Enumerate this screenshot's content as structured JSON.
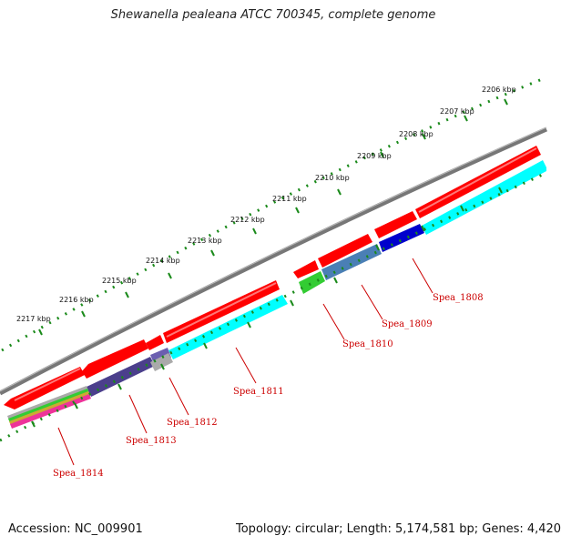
{
  "title": "Shewanella pealeana ATCC 700345, complete genome",
  "footer": {
    "accession": "Accession: NC_009901",
    "info": "Topology: circular; Length: 5,174,581 bp; Genes: 4,420"
  },
  "ruler": {
    "labels": [
      "2206 kbp",
      "2207 kbp",
      "2208 kbp",
      "2209 kbp",
      "2210 kbp",
      "2211 kbp",
      "2212 kbp",
      "2213 kbp",
      "2214 kbp",
      "2215 kbp",
      "2216 kbp",
      "2217 kbp"
    ]
  },
  "genes": [
    {
      "name": "Spea_1808"
    },
    {
      "name": "Spea_1809"
    },
    {
      "name": "Spea_1810"
    },
    {
      "name": "Spea_1811"
    },
    {
      "name": "Spea_1812"
    },
    {
      "name": "Spea_1813"
    },
    {
      "name": "Spea_1814"
    }
  ],
  "colors": {
    "gene_red": "#ff0000",
    "cyan": "#00ffff",
    "blue": "#0000cc",
    "steelblue": "#4a7fb5",
    "green": "#33cc33",
    "indigo": "#4b3f8c",
    "grey_track": "#888888",
    "tick_green": "#1a8a1a",
    "label_red": "#cc0000"
  }
}
